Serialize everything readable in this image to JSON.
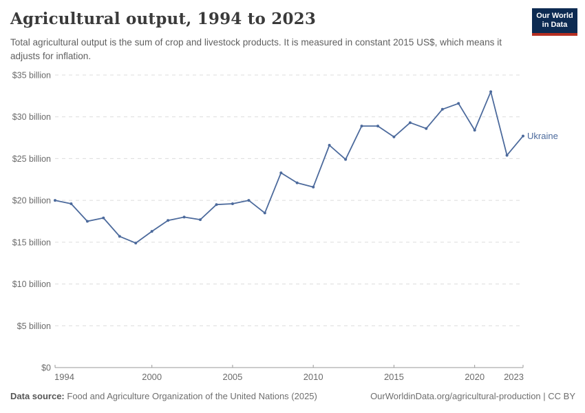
{
  "header": {
    "title": "Agricultural output, 1994 to 2023",
    "subtitle": "Total agricultural output is the sum of crop and livestock products. It is measured in constant 2015 US$, which means it adjusts for inflation.",
    "logo_line1": "Our World",
    "logo_line2": "in Data"
  },
  "chart_data": {
    "type": "line",
    "title": "Agricultural output, 1994 to 2023",
    "ylabel": "",
    "xlabel": "",
    "unit": "constant 2015 US$",
    "grid": "horizontal-dashed",
    "legend_position": "end-of-line-label",
    "ylim": [
      0,
      35
    ],
    "ytick_step": 5,
    "ytick_labels": [
      "$0",
      "$5 billion",
      "$10 billion",
      "$15 billion",
      "$20 billion",
      "$25 billion",
      "$30 billion",
      "$35 billion"
    ],
    "xlim": [
      1994,
      2023
    ],
    "xticks": [
      1994,
      2000,
      2005,
      2010,
      2015,
      2020,
      2023
    ],
    "x": [
      1994,
      1995,
      1996,
      1997,
      1998,
      1999,
      2000,
      2001,
      2002,
      2003,
      2004,
      2005,
      2006,
      2007,
      2008,
      2009,
      2010,
      2011,
      2012,
      2013,
      2014,
      2015,
      2016,
      2017,
      2018,
      2019,
      2020,
      2021,
      2022,
      2023
    ],
    "series": [
      {
        "name": "Ukraine",
        "color": "#4C6A9C",
        "values": [
          20.0,
          19.6,
          17.5,
          17.9,
          15.7,
          14.9,
          16.3,
          17.6,
          18.0,
          17.7,
          19.5,
          19.6,
          20.0,
          18.5,
          23.3,
          22.1,
          21.6,
          26.6,
          24.9,
          28.9,
          28.9,
          27.6,
          29.3,
          28.6,
          30.9,
          31.6,
          28.4,
          33.0,
          25.4,
          27.7
        ]
      }
    ]
  },
  "footer": {
    "source_label": "Data source:",
    "source_text": "Food and Agriculture Organization of the United Nations (2025)",
    "credit": "OurWorldinData.org/agricultural-production | CC BY"
  },
  "colors": {
    "line": "#4C6A9C",
    "gridline": "#dcdcdc",
    "axis": "#999999",
    "tick_label": "#6b6b6b",
    "title": "#3a3a3a",
    "subtitle": "#5f5f5f",
    "logo_bg": "#0d2b52",
    "logo_stripe": "#b62f22"
  }
}
